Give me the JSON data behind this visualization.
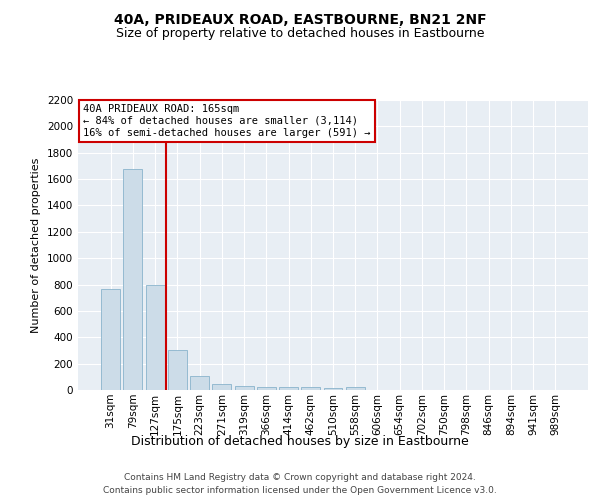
{
  "title": "40A, PRIDEAUX ROAD, EASTBOURNE, BN21 2NF",
  "subtitle": "Size of property relative to detached houses in Eastbourne",
  "xlabel": "Distribution of detached houses by size in Eastbourne",
  "ylabel": "Number of detached properties",
  "categories": [
    "31sqm",
    "79sqm",
    "127sqm",
    "175sqm",
    "223sqm",
    "271sqm",
    "319sqm",
    "366sqm",
    "414sqm",
    "462sqm",
    "510sqm",
    "558sqm",
    "606sqm",
    "654sqm",
    "702sqm",
    "750sqm",
    "798sqm",
    "846sqm",
    "894sqm",
    "941sqm",
    "989sqm"
  ],
  "values": [
    770,
    1680,
    800,
    300,
    110,
    45,
    30,
    25,
    20,
    20,
    15,
    20,
    0,
    0,
    0,
    0,
    0,
    0,
    0,
    0,
    0
  ],
  "bar_color": "#ccdce8",
  "bar_edge_color": "#8ab4cc",
  "bar_width": 0.85,
  "ylim": [
    0,
    2200
  ],
  "yticks": [
    0,
    200,
    400,
    600,
    800,
    1000,
    1200,
    1400,
    1600,
    1800,
    2000,
    2200
  ],
  "vline_x": 2.5,
  "vline_color": "#cc0000",
  "annotation_title": "40A PRIDEAUX ROAD: 165sqm",
  "annotation_line1": "← 84% of detached houses are smaller (3,114)",
  "annotation_line2": "16% of semi-detached houses are larger (591) →",
  "annotation_box_color": "#ffffff",
  "annotation_box_edge": "#cc0000",
  "bg_color": "#e8eef4",
  "footer1": "Contains HM Land Registry data © Crown copyright and database right 2024.",
  "footer2": "Contains public sector information licensed under the Open Government Licence v3.0.",
  "title_fontsize": 10,
  "subtitle_fontsize": 9,
  "ylabel_fontsize": 8,
  "xlabel_fontsize": 9,
  "tick_fontsize": 7.5,
  "annotation_fontsize": 7.5,
  "footer_fontsize": 6.5
}
